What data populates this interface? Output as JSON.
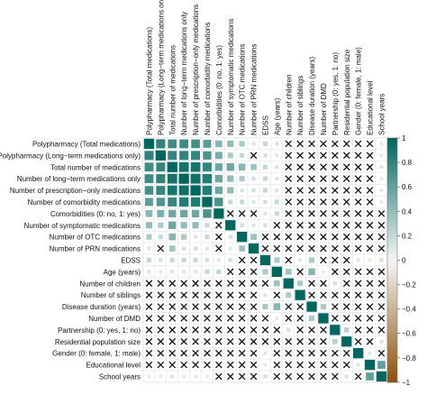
{
  "chart_data": {
    "type": "heatmap",
    "title": "",
    "variables": [
      "Polypharmacy (Total medications)",
      "Polypharmacy (Long−term medications only)",
      "Total number of medications",
      "Number of long−term medications only",
      "Number of prescription−only medications",
      "Number of comorbidity medications",
      "Comorbidities (0: no, 1: yes)",
      "Number of symptomatic medications",
      "Number of OTC medications",
      "Number of PRN medications",
      "EDSS",
      "Age (years)",
      "Number of children",
      "Number of siblings",
      "Disease duration (years)",
      "Number of DMD",
      "Partnership (0: yes, 1: no)",
      "Residential population size",
      "Gender (0: female, 1: male)",
      "Educational level",
      "School years"
    ],
    "matrix": [
      [
        1,
        0.8,
        0.75,
        0.75,
        0.72,
        0.62,
        0.45,
        0.4,
        0.3,
        0.12,
        0.2,
        0.12,
        0,
        0,
        0,
        0,
        0,
        0,
        0,
        0,
        -0.1
      ],
      [
        0.8,
        1,
        0.78,
        0.8,
        0.78,
        0.68,
        0.5,
        0.3,
        0.2,
        0,
        0.15,
        0.1,
        0,
        0,
        0,
        0,
        0,
        0,
        0,
        0,
        -0.1
      ],
      [
        0.75,
        0.78,
        1,
        0.92,
        0.9,
        0.78,
        0.55,
        0.55,
        0.45,
        0.35,
        0.2,
        0.12,
        0,
        0,
        0,
        0,
        0,
        0,
        0,
        0,
        -0.12
      ],
      [
        0.75,
        0.8,
        0.92,
        1,
        0.94,
        0.85,
        0.55,
        0.4,
        0.3,
        0.15,
        0.2,
        0.12,
        0,
        0,
        0,
        0,
        0,
        0,
        0,
        0,
        -0.1
      ],
      [
        0.72,
        0.78,
        0.9,
        0.94,
        1,
        0.85,
        0.55,
        0.4,
        0.12,
        0.15,
        0.2,
        0.12,
        0,
        0,
        0,
        0,
        0,
        0,
        0,
        0,
        -0.1
      ],
      [
        0.62,
        0.68,
        0.78,
        0.85,
        0.85,
        1,
        0.7,
        0.2,
        0.2,
        0.12,
        0.15,
        0.2,
        0,
        0,
        0,
        0,
        0,
        0,
        0,
        0,
        -0.1
      ],
      [
        0.45,
        0.5,
        0.55,
        0.55,
        0.55,
        0.7,
        1,
        0,
        0,
        0,
        0.12,
        0.2,
        0,
        0,
        0,
        0,
        0,
        0,
        0,
        0,
        0
      ],
      [
        0.4,
        0.3,
        0.55,
        0.4,
        0.4,
        0.2,
        0,
        1,
        0.15,
        0.12,
        0.15,
        0,
        0,
        0,
        0,
        0,
        0,
        0,
        0,
        0,
        0
      ],
      [
        0.3,
        0.2,
        0.45,
        0.3,
        0.12,
        0.2,
        0,
        0.15,
        1,
        0.35,
        0,
        0,
        0,
        0,
        0,
        0,
        0,
        0,
        0,
        0,
        0
      ],
      [
        0.12,
        0,
        0.35,
        0.15,
        0.15,
        0.12,
        0,
        0.12,
        0.35,
        1,
        0,
        0,
        0,
        0,
        0,
        0,
        0,
        0,
        0,
        0,
        0
      ],
      [
        0.2,
        0.15,
        0.2,
        0.2,
        0.2,
        0.15,
        0.12,
        0.15,
        0,
        0,
        1,
        0.3,
        0,
        0.12,
        0.3,
        0,
        0,
        0,
        0.12,
        -0.1,
        -0.15
      ],
      [
        0.12,
        0.1,
        0.12,
        0.12,
        0.12,
        0.2,
        0.2,
        0,
        0,
        0,
        0.3,
        1,
        0.35,
        0,
        0.45,
        -0.1,
        0,
        0,
        0,
        0,
        0
      ],
      [
        0,
        0,
        0,
        0,
        0,
        0,
        0,
        0,
        0,
        0,
        0,
        0.35,
        1,
        0.3,
        0,
        0,
        -0.15,
        0,
        0,
        0,
        0
      ],
      [
        0,
        0,
        0,
        0,
        0,
        0,
        0,
        0,
        0,
        0,
        0.12,
        0,
        0.3,
        1,
        0,
        0,
        0,
        0,
        0,
        0,
        0
      ],
      [
        0,
        0,
        0,
        0,
        0,
        0,
        0,
        0,
        0,
        0,
        0.3,
        0.45,
        0,
        0,
        1,
        0.3,
        0,
        0,
        0,
        0,
        0
      ],
      [
        0,
        0,
        0,
        0,
        0,
        0,
        0,
        0,
        0,
        0,
        0,
        -0.1,
        0,
        0,
        0.3,
        1,
        0,
        0,
        0,
        0,
        0
      ],
      [
        0,
        0,
        0,
        0,
        0,
        0,
        0,
        0,
        0,
        0,
        0,
        0,
        -0.15,
        0,
        0,
        0,
        1,
        0.25,
        0,
        0,
        0
      ],
      [
        0,
        0,
        0,
        0,
        0,
        0,
        0,
        0,
        0,
        0,
        0,
        0,
        0,
        0,
        0,
        0,
        0.25,
        1,
        0,
        0,
        0.12
      ],
      [
        0,
        0,
        0,
        0,
        0,
        0,
        0,
        0,
        0,
        0,
        0.12,
        0,
        0,
        0,
        0,
        0,
        0,
        0,
        1,
        0.12,
        0
      ],
      [
        0,
        0,
        0,
        0,
        0,
        0,
        0,
        0,
        0,
        0,
        -0.1,
        0,
        0,
        0,
        0,
        0,
        0,
        0,
        0.12,
        1,
        0.6
      ],
      [
        -0.1,
        -0.1,
        -0.12,
        -0.1,
        -0.1,
        -0.1,
        0,
        0,
        0,
        0,
        -0.15,
        0,
        0,
        0,
        0,
        0,
        0,
        0.12,
        0,
        0.6,
        1
      ]
    ],
    "nonsignificant": [
      [
        0,
        12
      ],
      [
        0,
        13
      ],
      [
        0,
        14
      ],
      [
        0,
        15
      ],
      [
        0,
        16
      ],
      [
        0,
        17
      ],
      [
        0,
        18
      ],
      [
        0,
        19
      ],
      [
        1,
        9
      ],
      [
        1,
        12
      ],
      [
        1,
        13
      ],
      [
        1,
        14
      ],
      [
        1,
        15
      ],
      [
        1,
        16
      ],
      [
        1,
        17
      ],
      [
        1,
        18
      ],
      [
        1,
        19
      ],
      [
        2,
        12
      ],
      [
        2,
        13
      ],
      [
        2,
        14
      ],
      [
        2,
        15
      ],
      [
        2,
        16
      ],
      [
        2,
        17
      ],
      [
        2,
        18
      ],
      [
        2,
        19
      ],
      [
        3,
        12
      ],
      [
        3,
        13
      ],
      [
        3,
        14
      ],
      [
        3,
        15
      ],
      [
        3,
        16
      ],
      [
        3,
        17
      ],
      [
        3,
        18
      ],
      [
        3,
        19
      ],
      [
        4,
        12
      ],
      [
        4,
        13
      ],
      [
        4,
        14
      ],
      [
        4,
        15
      ],
      [
        4,
        16
      ],
      [
        4,
        17
      ],
      [
        4,
        18
      ],
      [
        4,
        19
      ],
      [
        5,
        12
      ],
      [
        5,
        13
      ],
      [
        5,
        14
      ],
      [
        5,
        15
      ],
      [
        5,
        16
      ],
      [
        5,
        17
      ],
      [
        5,
        18
      ],
      [
        5,
        19
      ],
      [
        6,
        7
      ],
      [
        6,
        8
      ],
      [
        6,
        9
      ],
      [
        6,
        12
      ],
      [
        6,
        13
      ],
      [
        6,
        14
      ],
      [
        6,
        15
      ],
      [
        6,
        16
      ],
      [
        6,
        17
      ],
      [
        6,
        18
      ],
      [
        6,
        19
      ],
      [
        6,
        20
      ],
      [
        7,
        6
      ],
      [
        7,
        11
      ],
      [
        7,
        12
      ],
      [
        7,
        13
      ],
      [
        7,
        14
      ],
      [
        7,
        15
      ],
      [
        7,
        16
      ],
      [
        7,
        17
      ],
      [
        7,
        18
      ],
      [
        7,
        19
      ],
      [
        7,
        20
      ],
      [
        8,
        6
      ],
      [
        8,
        10
      ],
      [
        8,
        11
      ],
      [
        8,
        12
      ],
      [
        8,
        13
      ],
      [
        8,
        14
      ],
      [
        8,
        15
      ],
      [
        8,
        16
      ],
      [
        8,
        17
      ],
      [
        8,
        18
      ],
      [
        8,
        19
      ],
      [
        8,
        20
      ],
      [
        9,
        1
      ],
      [
        9,
        6
      ],
      [
        9,
        10
      ],
      [
        9,
        11
      ],
      [
        9,
        12
      ],
      [
        9,
        13
      ],
      [
        9,
        14
      ],
      [
        9,
        15
      ],
      [
        9,
        16
      ],
      [
        9,
        17
      ],
      [
        9,
        18
      ],
      [
        9,
        19
      ],
      [
        9,
        20
      ],
      [
        10,
        8
      ],
      [
        10,
        9
      ],
      [
        10,
        12
      ],
      [
        10,
        15
      ],
      [
        10,
        16
      ],
      [
        10,
        17
      ],
      [
        11,
        7
      ],
      [
        11,
        8
      ],
      [
        11,
        9
      ],
      [
        11,
        13
      ],
      [
        11,
        16
      ],
      [
        11,
        17
      ],
      [
        11,
        18
      ],
      [
        11,
        19
      ],
      [
        11,
        20
      ],
      [
        12,
        0
      ],
      [
        12,
        1
      ],
      [
        12,
        2
      ],
      [
        12,
        3
      ],
      [
        12,
        4
      ],
      [
        12,
        5
      ],
      [
        12,
        6
      ],
      [
        12,
        7
      ],
      [
        12,
        8
      ],
      [
        12,
        9
      ],
      [
        12,
        10
      ],
      [
        12,
        14
      ],
      [
        12,
        15
      ],
      [
        12,
        17
      ],
      [
        12,
        18
      ],
      [
        12,
        19
      ],
      [
        12,
        20
      ],
      [
        13,
        0
      ],
      [
        13,
        1
      ],
      [
        13,
        2
      ],
      [
        13,
        3
      ],
      [
        13,
        4
      ],
      [
        13,
        5
      ],
      [
        13,
        6
      ],
      [
        13,
        7
      ],
      [
        13,
        8
      ],
      [
        13,
        9
      ],
      [
        13,
        11
      ],
      [
        13,
        14
      ],
      [
        13,
        15
      ],
      [
        13,
        16
      ],
      [
        13,
        17
      ],
      [
        13,
        18
      ],
      [
        13,
        19
      ],
      [
        13,
        20
      ],
      [
        14,
        0
      ],
      [
        14,
        1
      ],
      [
        14,
        2
      ],
      [
        14,
        3
      ],
      [
        14,
        4
      ],
      [
        14,
        5
      ],
      [
        14,
        6
      ],
      [
        14,
        7
      ],
      [
        14,
        8
      ],
      [
        14,
        9
      ],
      [
        14,
        12
      ],
      [
        14,
        13
      ],
      [
        14,
        16
      ],
      [
        14,
        17
      ],
      [
        14,
        18
      ],
      [
        14,
        19
      ],
      [
        14,
        20
      ],
      [
        15,
        0
      ],
      [
        15,
        1
      ],
      [
        15,
        2
      ],
      [
        15,
        3
      ],
      [
        15,
        4
      ],
      [
        15,
        5
      ],
      [
        15,
        6
      ],
      [
        15,
        7
      ],
      [
        15,
        8
      ],
      [
        15,
        9
      ],
      [
        15,
        10
      ],
      [
        15,
        12
      ],
      [
        15,
        13
      ],
      [
        15,
        16
      ],
      [
        15,
        17
      ],
      [
        15,
        18
      ],
      [
        15,
        19
      ],
      [
        15,
        20
      ],
      [
        16,
        0
      ],
      [
        16,
        1
      ],
      [
        16,
        2
      ],
      [
        16,
        3
      ],
      [
        16,
        4
      ],
      [
        16,
        5
      ],
      [
        16,
        6
      ],
      [
        16,
        7
      ],
      [
        16,
        8
      ],
      [
        16,
        9
      ],
      [
        16,
        10
      ],
      [
        16,
        11
      ],
      [
        16,
        13
      ],
      [
        16,
        14
      ],
      [
        16,
        15
      ],
      [
        16,
        18
      ],
      [
        16,
        19
      ],
      [
        16,
        20
      ],
      [
        17,
        0
      ],
      [
        17,
        1
      ],
      [
        17,
        2
      ],
      [
        17,
        3
      ],
      [
        17,
        4
      ],
      [
        17,
        5
      ],
      [
        17,
        6
      ],
      [
        17,
        7
      ],
      [
        17,
        8
      ],
      [
        17,
        9
      ],
      [
        17,
        10
      ],
      [
        17,
        11
      ],
      [
        17,
        12
      ],
      [
        17,
        13
      ],
      [
        17,
        14
      ],
      [
        17,
        15
      ],
      [
        17,
        18
      ],
      [
        17,
        19
      ],
      [
        18,
        0
      ],
      [
        18,
        1
      ],
      [
        18,
        2
      ],
      [
        18,
        3
      ],
      [
        18,
        4
      ],
      [
        18,
        5
      ],
      [
        18,
        6
      ],
      [
        18,
        7
      ],
      [
        18,
        8
      ],
      [
        18,
        9
      ],
      [
        18,
        11
      ],
      [
        18,
        12
      ],
      [
        18,
        13
      ],
      [
        18,
        14
      ],
      [
        18,
        15
      ],
      [
        18,
        16
      ],
      [
        18,
        17
      ],
      [
        18,
        20
      ],
      [
        19,
        0
      ],
      [
        19,
        1
      ],
      [
        19,
        2
      ],
      [
        19,
        3
      ],
      [
        19,
        4
      ],
      [
        19,
        5
      ],
      [
        19,
        6
      ],
      [
        19,
        7
      ],
      [
        19,
        8
      ],
      [
        19,
        9
      ],
      [
        19,
        11
      ],
      [
        19,
        12
      ],
      [
        19,
        13
      ],
      [
        19,
        14
      ],
      [
        19,
        15
      ],
      [
        19,
        16
      ],
      [
        19,
        17
      ],
      [
        20,
        6
      ],
      [
        20,
        7
      ],
      [
        20,
        8
      ],
      [
        20,
        9
      ],
      [
        20,
        11
      ],
      [
        20,
        12
      ],
      [
        20,
        13
      ],
      [
        20,
        14
      ],
      [
        20,
        15
      ],
      [
        20,
        16
      ],
      [
        20,
        18
      ]
    ],
    "colorbar": {
      "min": -1,
      "max": 1,
      "ticks": [
        "1",
        "0.8",
        "0.6",
        "0.4",
        "0.2",
        "0",
        "−0.2",
        "−0.4",
        "−0.6",
        "−0.8",
        "−1"
      ],
      "colors": {
        "negative": "#8c510a",
        "neutral": "#f5f5f5",
        "positive": "#01665e"
      }
    }
  }
}
